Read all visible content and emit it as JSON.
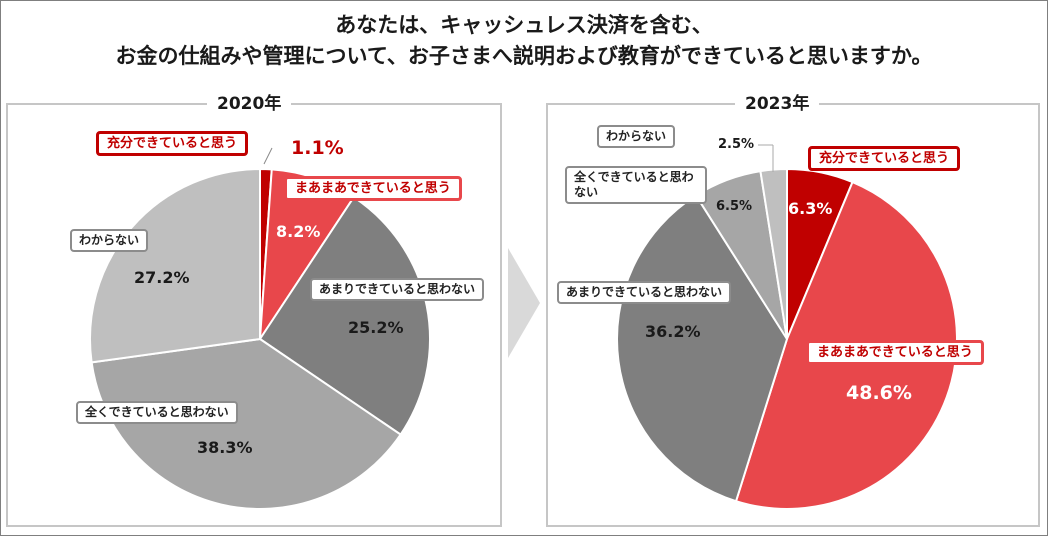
{
  "title_line1": "あなたは、キャッシュレス決済を含む、",
  "title_line2": "お金の仕組みや管理について、お子さまへ説明および教育ができていると思いますか。",
  "colors": {
    "enough": "#c00000",
    "somewhat": "#e8474b",
    "not_much": "#7f7f7f",
    "not_at_all": "#a6a6a6",
    "unknown": "#bfbfbf"
  },
  "chart_data": [
    {
      "type": "pie",
      "title": "2020年",
      "categories": [
        "充分できていると思う",
        "まあまあできていると思う",
        "あまりできていると思わない",
        "全くできていると思わない",
        "わからない"
      ],
      "values": [
        1.1,
        8.2,
        25.2,
        38.3,
        27.2
      ],
      "value_labels": [
        "1.1%",
        "8.2%",
        "25.2%",
        "38.3%",
        "27.2%"
      ]
    },
    {
      "type": "pie",
      "title": "2023年",
      "categories": [
        "充分できていると思う",
        "まあまあできていると思う",
        "あまりできていると思わない",
        "全くできていると思わない",
        "わからない"
      ],
      "values": [
        6.3,
        48.6,
        36.2,
        6.5,
        2.5
      ],
      "value_labels": [
        "6.3%",
        "48.6%",
        "36.2%",
        "6.5%",
        "2.5%"
      ]
    }
  ]
}
